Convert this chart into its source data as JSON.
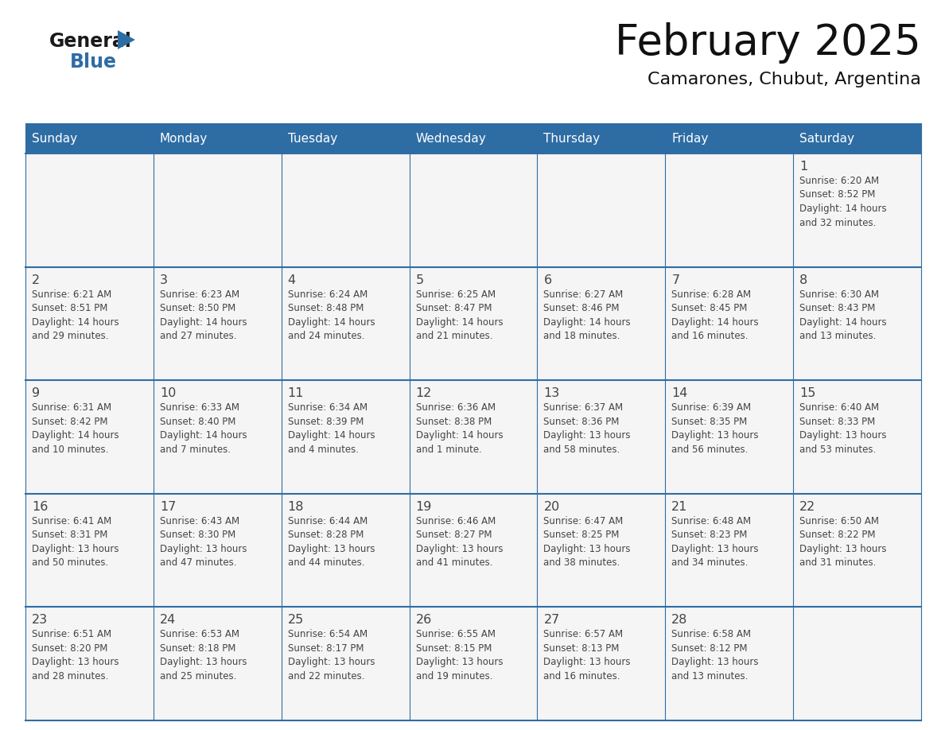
{
  "title": "February 2025",
  "subtitle": "Camarones, Chubut, Argentina",
  "header_bg": "#2E6DA4",
  "header_text_color": "#FFFFFF",
  "border_color": "#2E6DA4",
  "text_color": "#444444",
  "day_number_color": "#2E6DA4",
  "days_of_week": [
    "Sunday",
    "Monday",
    "Tuesday",
    "Wednesday",
    "Thursday",
    "Friday",
    "Saturday"
  ],
  "weeks": [
    [
      null,
      null,
      null,
      null,
      null,
      null,
      {
        "day": "1",
        "sunrise": "6:20 AM",
        "sunset": "8:52 PM",
        "daylight": "14 hours\nand 32 minutes."
      }
    ],
    [
      {
        "day": "2",
        "sunrise": "6:21 AM",
        "sunset": "8:51 PM",
        "daylight": "14 hours\nand 29 minutes."
      },
      {
        "day": "3",
        "sunrise": "6:23 AM",
        "sunset": "8:50 PM",
        "daylight": "14 hours\nand 27 minutes."
      },
      {
        "day": "4",
        "sunrise": "6:24 AM",
        "sunset": "8:48 PM",
        "daylight": "14 hours\nand 24 minutes."
      },
      {
        "day": "5",
        "sunrise": "6:25 AM",
        "sunset": "8:47 PM",
        "daylight": "14 hours\nand 21 minutes."
      },
      {
        "day": "6",
        "sunrise": "6:27 AM",
        "sunset": "8:46 PM",
        "daylight": "14 hours\nand 18 minutes."
      },
      {
        "day": "7",
        "sunrise": "6:28 AM",
        "sunset": "8:45 PM",
        "daylight": "14 hours\nand 16 minutes."
      },
      {
        "day": "8",
        "sunrise": "6:30 AM",
        "sunset": "8:43 PM",
        "daylight": "14 hours\nand 13 minutes."
      }
    ],
    [
      {
        "day": "9",
        "sunrise": "6:31 AM",
        "sunset": "8:42 PM",
        "daylight": "14 hours\nand 10 minutes."
      },
      {
        "day": "10",
        "sunrise": "6:33 AM",
        "sunset": "8:40 PM",
        "daylight": "14 hours\nand 7 minutes."
      },
      {
        "day": "11",
        "sunrise": "6:34 AM",
        "sunset": "8:39 PM",
        "daylight": "14 hours\nand 4 minutes."
      },
      {
        "day": "12",
        "sunrise": "6:36 AM",
        "sunset": "8:38 PM",
        "daylight": "14 hours\nand 1 minute."
      },
      {
        "day": "13",
        "sunrise": "6:37 AM",
        "sunset": "8:36 PM",
        "daylight": "13 hours\nand 58 minutes."
      },
      {
        "day": "14",
        "sunrise": "6:39 AM",
        "sunset": "8:35 PM",
        "daylight": "13 hours\nand 56 minutes."
      },
      {
        "day": "15",
        "sunrise": "6:40 AM",
        "sunset": "8:33 PM",
        "daylight": "13 hours\nand 53 minutes."
      }
    ],
    [
      {
        "day": "16",
        "sunrise": "6:41 AM",
        "sunset": "8:31 PM",
        "daylight": "13 hours\nand 50 minutes."
      },
      {
        "day": "17",
        "sunrise": "6:43 AM",
        "sunset": "8:30 PM",
        "daylight": "13 hours\nand 47 minutes."
      },
      {
        "day": "18",
        "sunrise": "6:44 AM",
        "sunset": "8:28 PM",
        "daylight": "13 hours\nand 44 minutes."
      },
      {
        "day": "19",
        "sunrise": "6:46 AM",
        "sunset": "8:27 PM",
        "daylight": "13 hours\nand 41 minutes."
      },
      {
        "day": "20",
        "sunrise": "6:47 AM",
        "sunset": "8:25 PM",
        "daylight": "13 hours\nand 38 minutes."
      },
      {
        "day": "21",
        "sunrise": "6:48 AM",
        "sunset": "8:23 PM",
        "daylight": "13 hours\nand 34 minutes."
      },
      {
        "day": "22",
        "sunrise": "6:50 AM",
        "sunset": "8:22 PM",
        "daylight": "13 hours\nand 31 minutes."
      }
    ],
    [
      {
        "day": "23",
        "sunrise": "6:51 AM",
        "sunset": "8:20 PM",
        "daylight": "13 hours\nand 28 minutes."
      },
      {
        "day": "24",
        "sunrise": "6:53 AM",
        "sunset": "8:18 PM",
        "daylight": "13 hours\nand 25 minutes."
      },
      {
        "day": "25",
        "sunrise": "6:54 AM",
        "sunset": "8:17 PM",
        "daylight": "13 hours\nand 22 minutes."
      },
      {
        "day": "26",
        "sunrise": "6:55 AM",
        "sunset": "8:15 PM",
        "daylight": "13 hours\nand 19 minutes."
      },
      {
        "day": "27",
        "sunrise": "6:57 AM",
        "sunset": "8:13 PM",
        "daylight": "13 hours\nand 16 minutes."
      },
      {
        "day": "28",
        "sunrise": "6:58 AM",
        "sunset": "8:12 PM",
        "daylight": "13 hours\nand 13 minutes."
      },
      null
    ]
  ],
  "logo_general_color": "#1a1a1a",
  "logo_blue_color": "#2E6DA4",
  "fig_width": 11.88,
  "fig_height": 9.18,
  "dpi": 100
}
